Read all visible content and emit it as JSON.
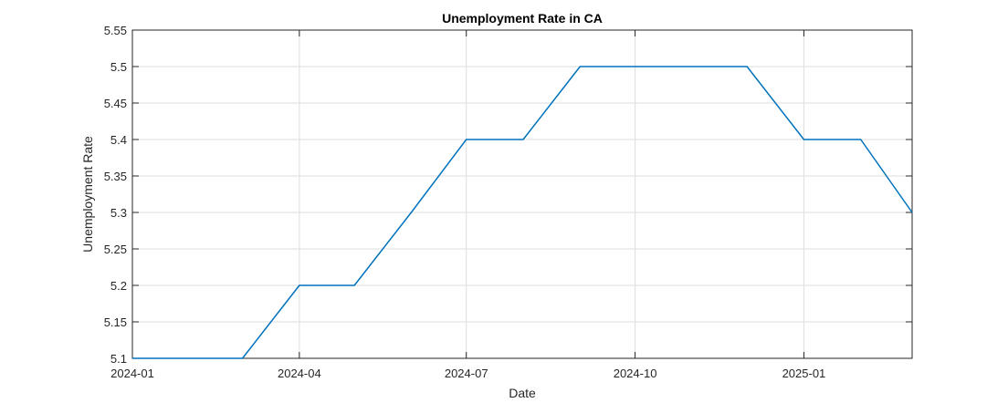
{
  "chart_data": {
    "type": "line",
    "title": "Unemployment Rate in CA",
    "xlabel": "Date",
    "ylabel": "Unemployment Rate",
    "x": [
      "2024-01",
      "2024-02",
      "2024-03",
      "2024-04",
      "2024-05",
      "2024-06",
      "2024-07",
      "2024-08",
      "2024-09",
      "2024-10",
      "2024-11",
      "2024-12",
      "2025-01",
      "2025-02",
      "2025-03"
    ],
    "series": [
      {
        "values": [
          5.1,
          5.1,
          5.1,
          5.2,
          5.2,
          5.3,
          5.4,
          5.4,
          5.5,
          5.5,
          5.5,
          5.5,
          5.4,
          5.4,
          5.3
        ],
        "color": "#0072BD"
      }
    ],
    "xlim": [
      "2024-01",
      "2025-03"
    ],
    "ylim": [
      5.1,
      5.55
    ],
    "xticks": [
      "2024-01",
      "2024-04",
      "2024-07",
      "2024-10",
      "2025-01"
    ],
    "yticks": [
      "5.1",
      "5.15",
      "5.2",
      "5.25",
      "5.3",
      "5.35",
      "5.4",
      "5.45",
      "5.5",
      "5.55"
    ],
    "grid": true
  }
}
